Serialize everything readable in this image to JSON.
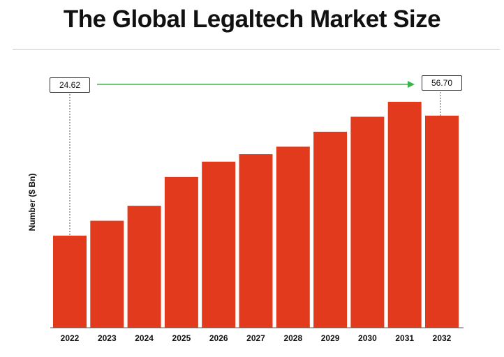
{
  "title": "The Global Legaltech Market Size",
  "chart_data": {
    "type": "bar",
    "title": "The Global Legaltech Market Size",
    "xlabel": "",
    "ylabel": "Number ($ Bn)",
    "categories": [
      "2022",
      "2023",
      "2024",
      "2025",
      "2026",
      "2027",
      "2028",
      "2029",
      "2030",
      "2031",
      "2032"
    ],
    "values": [
      24.62,
      28.6,
      32.6,
      40.3,
      44.4,
      46.4,
      48.4,
      52.4,
      56.4,
      60.4,
      56.7
    ],
    "annotations": {
      "start_label": "24.62",
      "end_label": "56.70"
    },
    "colors": {
      "bar": "#E23A1C",
      "arrow": "#3CB44B",
      "axis": "#555555"
    }
  }
}
